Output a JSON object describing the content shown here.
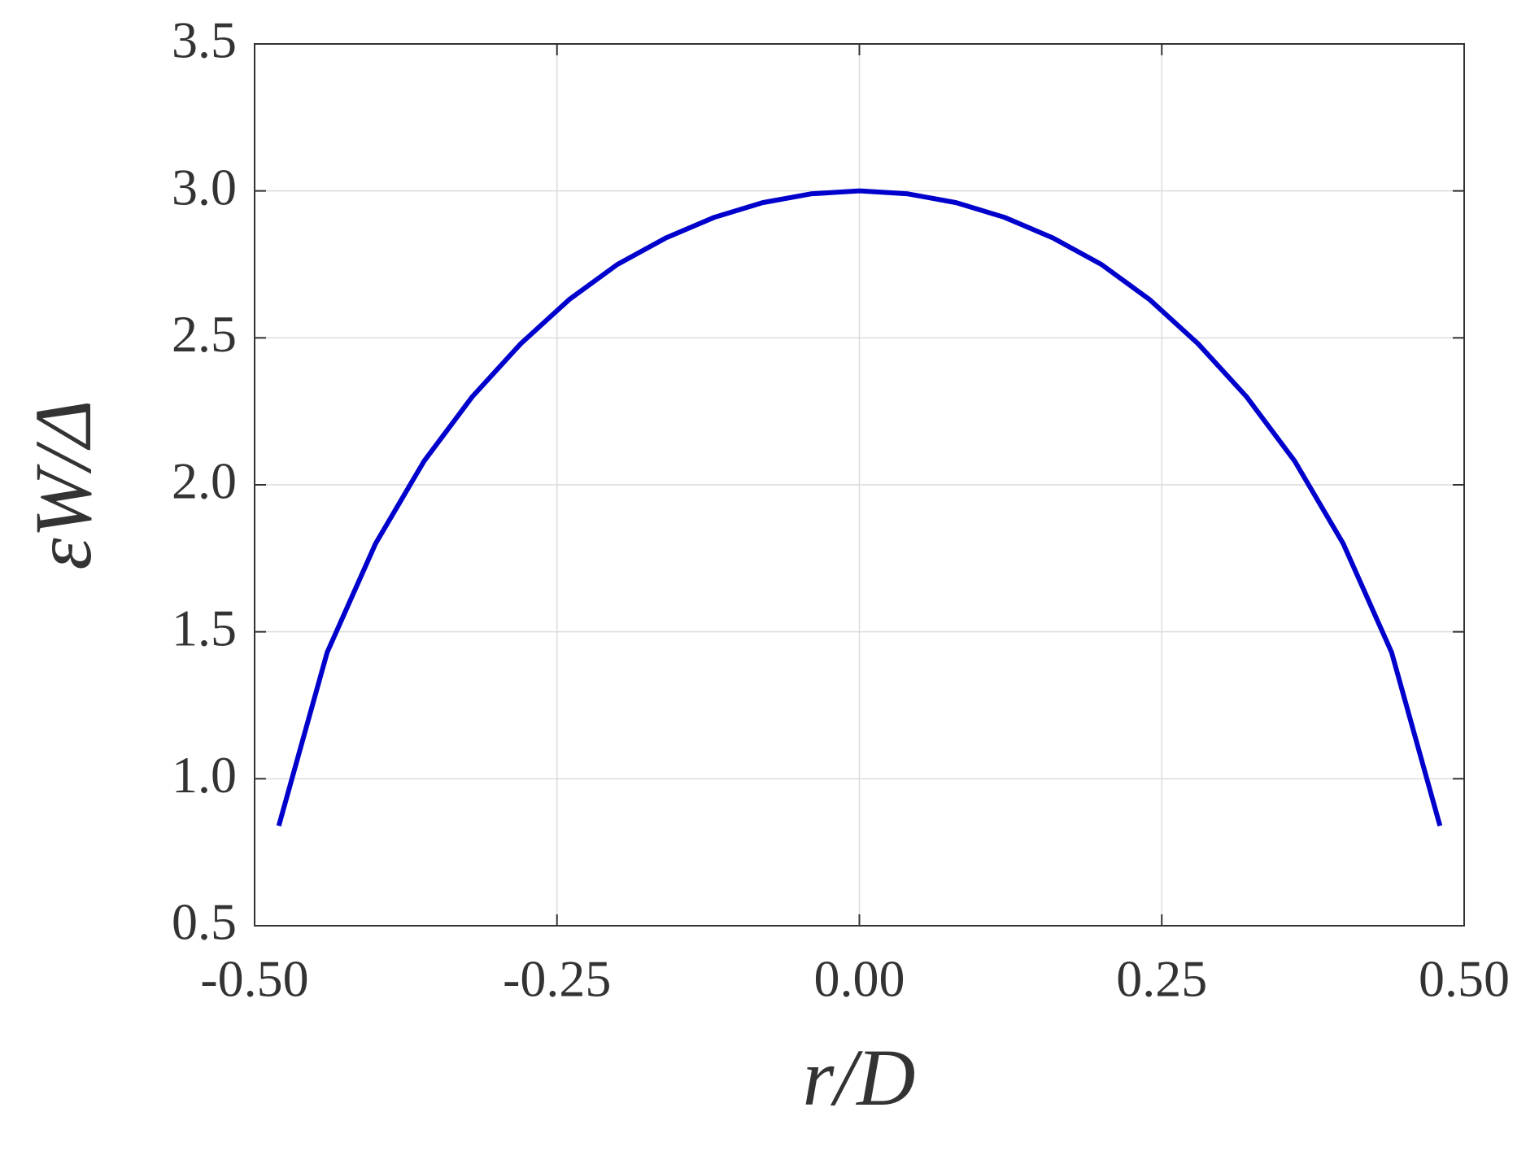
{
  "chart_data": {
    "type": "line",
    "xlabel": "r/D",
    "ylabel": "εW/Δ",
    "x": [
      -0.48,
      -0.44,
      -0.4,
      -0.36,
      -0.32,
      -0.28,
      -0.24,
      -0.2,
      -0.16,
      -0.12,
      -0.08,
      -0.04,
      0.0,
      0.04,
      0.08,
      0.12,
      0.16,
      0.2,
      0.24,
      0.28,
      0.32,
      0.36,
      0.4,
      0.44,
      0.48
    ],
    "values": [
      0.84,
      1.43,
      1.8,
      2.08,
      2.3,
      2.48,
      2.63,
      2.75,
      2.84,
      2.91,
      2.96,
      2.99,
      3.0,
      2.99,
      2.96,
      2.91,
      2.84,
      2.75,
      2.63,
      2.48,
      2.3,
      2.08,
      1.8,
      1.43,
      0.84
    ],
    "color": "#0000cc",
    "xlim": [
      -0.5,
      0.5
    ],
    "xticks": [
      {
        "value": -0.5,
        "label": "-0.50"
      },
      {
        "value": -0.25,
        "label": "-0.25"
      },
      {
        "value": 0,
        "label": "0.00"
      },
      {
        "value": 0.25,
        "label": "0.25"
      },
      {
        "value": 0.5,
        "label": "0.50"
      }
    ],
    "ylim": [
      0.5,
      3.5
    ],
    "yticks": [
      0.5,
      {
        "value": 1,
        "label": "1.0"
      },
      1.5,
      {
        "value": 2,
        "label": "2.0"
      },
      2.5,
      {
        "value": 3,
        "label": "3.0"
      },
      3.5
    ],
    "grid": true
  }
}
